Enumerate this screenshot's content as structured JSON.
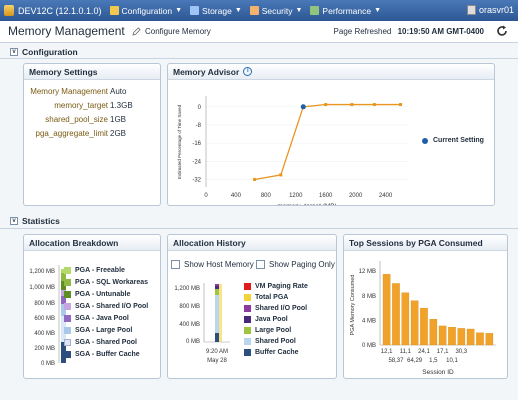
{
  "topbar": {
    "db_title": "DEV12C (12.1.0.1.0)",
    "menus": [
      {
        "label": "Configuration",
        "icon": "wrench-icon",
        "color": "#f2c94c"
      },
      {
        "label": "Storage",
        "icon": "storage-icon",
        "color": "#9fc5f8"
      },
      {
        "label": "Security",
        "icon": "lock-icon",
        "color": "#f6b26b"
      },
      {
        "label": "Performance",
        "icon": "chart-icon",
        "color": "#93c47d"
      }
    ],
    "user": "orasvr01"
  },
  "header": {
    "title": "Memory Management",
    "configure_label": "Configure Memory",
    "refreshed_label": "Page Refreshed",
    "refreshed_time": "10:19:50 AM GMT-0400"
  },
  "sections": {
    "configuration": "Configuration",
    "statistics": "Statistics"
  },
  "memory_settings": {
    "title": "Memory Settings",
    "rows": [
      {
        "key": "Memory Management",
        "value": "Auto"
      },
      {
        "key": "memory_target",
        "value": "1.3GB"
      },
      {
        "key": "shared_pool_size",
        "value": "1GB"
      },
      {
        "key": "pga_aggregate_limit",
        "value": "2GB"
      }
    ]
  },
  "memory_advisor": {
    "title": "Memory Advisor",
    "legend": "Current Setting",
    "current_setting_color": "#1f5fa8",
    "line_color": "#e8961e"
  },
  "allocation_breakdown": {
    "title": "Allocation Breakdown",
    "yticks": [
      "1,200 MB",
      "1,000 MB",
      "800 MB",
      "600 MB",
      "400 MB",
      "200 MB",
      "0 MB"
    ],
    "legend": [
      {
        "label": "PGA - Freeable",
        "color": "#b6d96b"
      },
      {
        "label": "PGA - SQL Workareas",
        "color": "#8fb944"
      },
      {
        "label": "PGA - Untunable",
        "color": "#5e8d23"
      },
      {
        "label": "SGA - Shared I/O Pool",
        "color": "#c6a6e0"
      },
      {
        "label": "SGA - Java Pool",
        "color": "#8f6ac2"
      },
      {
        "label": "SGA - Large Pool",
        "color": "#a9c8ea"
      },
      {
        "label": "SGA - Shared Pool",
        "color": "#d8e8f7"
      },
      {
        "label": "SGA - Buffer Cache",
        "color": "#2c4f7f"
      }
    ]
  },
  "allocation_history": {
    "title": "Allocation History",
    "show_host_memory": "Show Host Memory",
    "show_paging_only": "Show Paging Only",
    "yticks": [
      "1,200 MB",
      "800 MB",
      "400 MB",
      "0 MB"
    ],
    "time_label_1": "9:20 AM",
    "time_label_2": "May 28",
    "legend": [
      {
        "label": "VM Paging Rate",
        "color": "#e01b1b"
      },
      {
        "label": "Total PGA",
        "color": "#f2d33a"
      },
      {
        "label": "Shared I/O Pool",
        "color": "#8a3aa0"
      },
      {
        "label": "Java Pool",
        "color": "#4a2a78"
      },
      {
        "label": "Large Pool",
        "color": "#9fc43f"
      },
      {
        "label": "Shared Pool",
        "color": "#b9d6ee"
      },
      {
        "label": "Buffer Cache",
        "color": "#2c4f7f"
      }
    ]
  },
  "chart_data": [
    {
      "type": "line",
      "title": "Memory Advisor",
      "xlabel": "memory_target (MB)",
      "ylabel": "Estimated Percentage of Time Saved",
      "x": [
        650,
        1000,
        1300,
        1600,
        1950,
        2250,
        2600
      ],
      "series": [
        {
          "values": [
            -32,
            -30,
            0,
            1,
            1,
            1,
            1
          ]
        }
      ],
      "current_setting": {
        "x": 1300,
        "y": 0
      },
      "xticks": [
        "0",
        "400",
        "800",
        "1200",
        "1600",
        "2000",
        "2400"
      ],
      "yticks": [
        "0",
        "-8",
        "-16",
        "-24",
        "-32"
      ],
      "xlim": [
        0,
        2700
      ],
      "ylim": [
        -34,
        3
      ]
    },
    {
      "type": "bar",
      "title": "Top Sessions by PGA Consumed",
      "xlabel": "Session ID",
      "ylabel": "PGA Memory Consumed",
      "categories": [
        "12,1",
        "58,37",
        "11,1",
        "64,29",
        "24,1",
        "1,5",
        "17,1",
        "10,1",
        "30,3",
        "",
        "",
        ""
      ],
      "values": [
        11.5,
        10,
        8.5,
        7.2,
        6.0,
        4.2,
        3.1,
        2.9,
        2.7,
        2.6,
        2.0,
        1.9
      ],
      "yticks": [
        "12 MB",
        "8 MB",
        "4 MB",
        "0 MB"
      ],
      "ylim": [
        0,
        13
      ]
    }
  ]
}
